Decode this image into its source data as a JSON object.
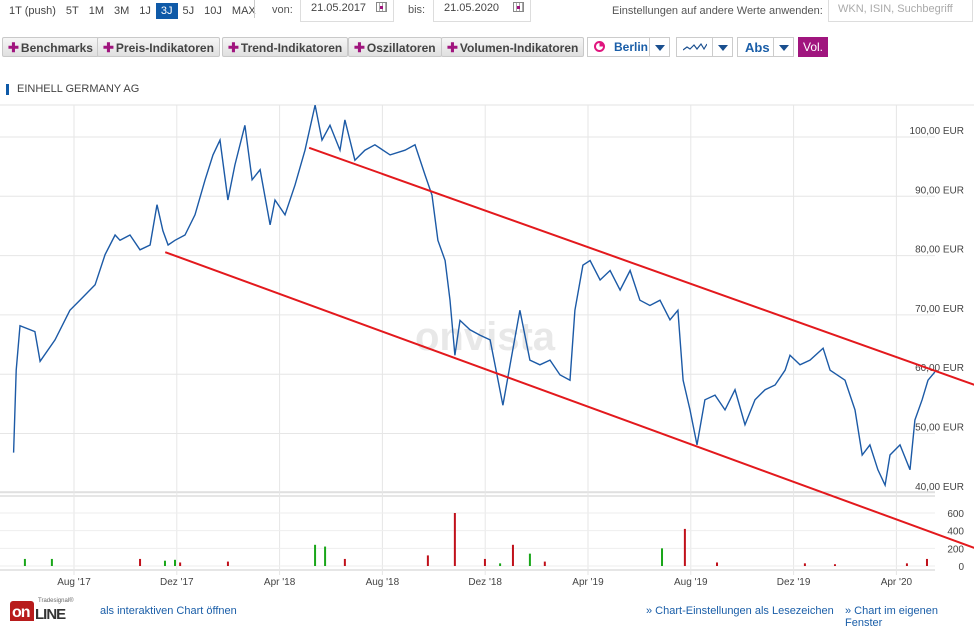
{
  "toolbar": {
    "ranges": [
      "1T (push)",
      "5T",
      "1M",
      "3M",
      "1J",
      "3J",
      "5J",
      "10J",
      "MAX"
    ],
    "active_range": "3J",
    "von_label": "von:",
    "von_value": "21.05.2017",
    "bis_label": "bis:",
    "bis_value": "21.05.2020",
    "apply_label": "Einstellungen auf andere Werte anwenden:",
    "search_placeholder": "WKN, ISIN, Suchbegriff",
    "buttons": [
      "Benchmarks",
      "Preis-Indikatoren",
      "Trend-Indikatoren",
      "Oszillatoren",
      "Volumen-Indikatoren"
    ],
    "exchange": "Berlin",
    "scale": "Abs",
    "vol": "Vol."
  },
  "watermark": "onvista",
  "footer": {
    "open_interactive": "als interaktiven Chart öffnen",
    "bookmark": "» Chart-Einstellungen als Lesezeichen",
    "own_window": "» Chart im eigenen Fenster",
    "logo_small": "Tradesignal®",
    "logo": "onLine"
  },
  "colors": {
    "price": "#1c5aa6",
    "channel": "#e3191d",
    "up": "#19a619",
    "down": "#c0101a",
    "accent": "#a0157e"
  },
  "chart_data": {
    "type": "line",
    "title": "EINHELL GERMANY AG",
    "x_unit": "months since 21.05.2017",
    "xlim": [
      0,
      36
    ],
    "ylim": [
      39.3,
      105.2
    ],
    "y_ticks": [
      40,
      50,
      60,
      70,
      80,
      90,
      100
    ],
    "y_tick_labels": [
      "40,00 EUR",
      "50,00 EUR",
      "60,00 EUR",
      "70,00 EUR",
      "80,00 EUR",
      "90,00 EUR",
      "100,00 EUR"
    ],
    "x_ticks": [
      2.35,
      6.35,
      10.35,
      14.35,
      18.35,
      22.35,
      26.35,
      30.35,
      34.35
    ],
    "x_tick_labels": [
      "Aug '17",
      "Dez '17",
      "Apr '18",
      "Aug '18",
      "Dez '18",
      "Apr '19",
      "Aug '19",
      "Dez '19",
      "Apr '20"
    ],
    "series": [
      {
        "name": "EINHELL GERMANY AG",
        "points": [
          [
            0,
            45.6
          ],
          [
            0.1,
            59.5
          ],
          [
            0.25,
            67
          ],
          [
            0.83,
            66
          ],
          [
            1.03,
            61
          ],
          [
            1.61,
            64.6
          ],
          [
            2.19,
            69.6
          ],
          [
            2.58,
            71.3
          ],
          [
            3.17,
            73.9
          ],
          [
            3.56,
            79
          ],
          [
            3.95,
            82.3
          ],
          [
            4.14,
            81.4
          ],
          [
            4.53,
            82.3
          ],
          [
            4.92,
            79.8
          ],
          [
            5.31,
            80.6
          ],
          [
            5.58,
            87.4
          ],
          [
            5.81,
            83
          ],
          [
            6.01,
            80.6
          ],
          [
            6.28,
            81.4
          ],
          [
            6.67,
            82.3
          ],
          [
            7.06,
            85.7
          ],
          [
            7.45,
            91.6
          ],
          [
            7.76,
            95.8
          ],
          [
            8.03,
            98.3
          ],
          [
            8.34,
            88.2
          ],
          [
            8.61,
            94.1
          ],
          [
            9.0,
            100.8
          ],
          [
            9.28,
            91.6
          ],
          [
            9.59,
            93.3
          ],
          [
            9.98,
            84
          ],
          [
            10.17,
            88.2
          ],
          [
            10.56,
            85.7
          ],
          [
            10.95,
            90.7
          ],
          [
            11.34,
            96.6
          ],
          [
            11.73,
            104.2
          ],
          [
            12.0,
            98.3
          ],
          [
            12.31,
            100.8
          ],
          [
            12.7,
            96.6
          ],
          [
            12.89,
            101.7
          ],
          [
            13.28,
            94.9
          ],
          [
            13.67,
            96.6
          ],
          [
            14.06,
            97.5
          ],
          [
            14.65,
            95.8
          ],
          [
            15.23,
            96.6
          ],
          [
            15.62,
            97.5
          ],
          [
            16.01,
            92.4
          ],
          [
            16.28,
            89
          ],
          [
            16.51,
            81.4
          ],
          [
            16.79,
            78
          ],
          [
            16.98,
            71.3
          ],
          [
            17.17,
            62
          ],
          [
            17.37,
            67.9
          ],
          [
            17.76,
            66.3
          ],
          [
            18.15,
            65.4
          ],
          [
            18.54,
            64.6
          ],
          [
            18.81,
            58.7
          ],
          [
            19.04,
            53.6
          ],
          [
            19.32,
            60.4
          ],
          [
            19.7,
            69.6
          ],
          [
            20.09,
            61.2
          ],
          [
            20.48,
            60.4
          ],
          [
            20.87,
            61.2
          ],
          [
            21.26,
            58.7
          ],
          [
            21.65,
            57.8
          ],
          [
            21.84,
            69.6
          ],
          [
            22.15,
            77.2
          ],
          [
            22.43,
            78
          ],
          [
            22.82,
            74.7
          ],
          [
            23.21,
            76.3
          ],
          [
            23.6,
            73
          ],
          [
            23.99,
            76.3
          ],
          [
            24.37,
            71.3
          ],
          [
            24.76,
            70.4
          ],
          [
            25.15,
            71.3
          ],
          [
            25.54,
            68
          ],
          [
            25.85,
            69.6
          ],
          [
            26.05,
            57.8
          ],
          [
            26.32,
            52.8
          ],
          [
            26.59,
            46.9
          ],
          [
            26.9,
            54.5
          ],
          [
            27.29,
            55.3
          ],
          [
            27.68,
            52.8
          ],
          [
            28.07,
            56.2
          ],
          [
            28.46,
            50.3
          ],
          [
            28.85,
            54.5
          ],
          [
            29.24,
            56.2
          ],
          [
            29.63,
            57
          ],
          [
            30.02,
            59.5
          ],
          [
            30.21,
            62
          ],
          [
            30.6,
            60.4
          ],
          [
            30.99,
            61.2
          ],
          [
            31.5,
            63.2
          ],
          [
            31.77,
            59.5
          ],
          [
            32.35,
            57.8
          ],
          [
            32.74,
            52.8
          ],
          [
            33.02,
            45.2
          ],
          [
            33.32,
            46.9
          ],
          [
            33.63,
            42.7
          ],
          [
            33.91,
            40.1
          ],
          [
            34.1,
            45.2
          ],
          [
            34.49,
            46.9
          ],
          [
            34.88,
            42.7
          ],
          [
            35.07,
            51.1
          ],
          [
            35.35,
            54.5
          ],
          [
            35.58,
            57.8
          ],
          [
            35.85,
            59.2
          ]
        ]
      }
    ],
    "trend_channel": [
      {
        "name": "upper",
        "from": [
          11.5,
          97
        ],
        "to": [
          37.4,
          57
        ]
      },
      {
        "name": "lower",
        "from": [
          5.9,
          79.4
        ],
        "to": [
          37.4,
          29.5
        ]
      }
    ],
    "volume": {
      "ylim": [
        0,
        720
      ],
      "y_ticks": [
        0,
        200,
        400,
        600
      ],
      "y_tick_labels": [
        "0",
        "200",
        "400",
        "600"
      ],
      "bars": [
        [
          0.44,
          80,
          "up"
        ],
        [
          1.49,
          80,
          "up"
        ],
        [
          4.92,
          80,
          "down"
        ],
        [
          5.89,
          60,
          "up"
        ],
        [
          6.28,
          70,
          "up"
        ],
        [
          6.48,
          40,
          "down"
        ],
        [
          8.34,
          50,
          "down"
        ],
        [
          11.73,
          240,
          "up"
        ],
        [
          12.12,
          220,
          "up"
        ],
        [
          12.89,
          80,
          "down"
        ],
        [
          16.12,
          120,
          "down"
        ],
        [
          17.17,
          600,
          "down"
        ],
        [
          18.34,
          80,
          "down"
        ],
        [
          18.93,
          30,
          "up"
        ],
        [
          19.43,
          240,
          "down"
        ],
        [
          20.09,
          140,
          "up"
        ],
        [
          20.67,
          50,
          "down"
        ],
        [
          25.23,
          200,
          "up"
        ],
        [
          26.12,
          420,
          "down"
        ],
        [
          27.37,
          40,
          "down"
        ],
        [
          30.79,
          30,
          "down"
        ],
        [
          31.96,
          20,
          "down"
        ],
        [
          34.76,
          30,
          "down"
        ],
        [
          35.54,
          80,
          "down"
        ]
      ]
    }
  }
}
